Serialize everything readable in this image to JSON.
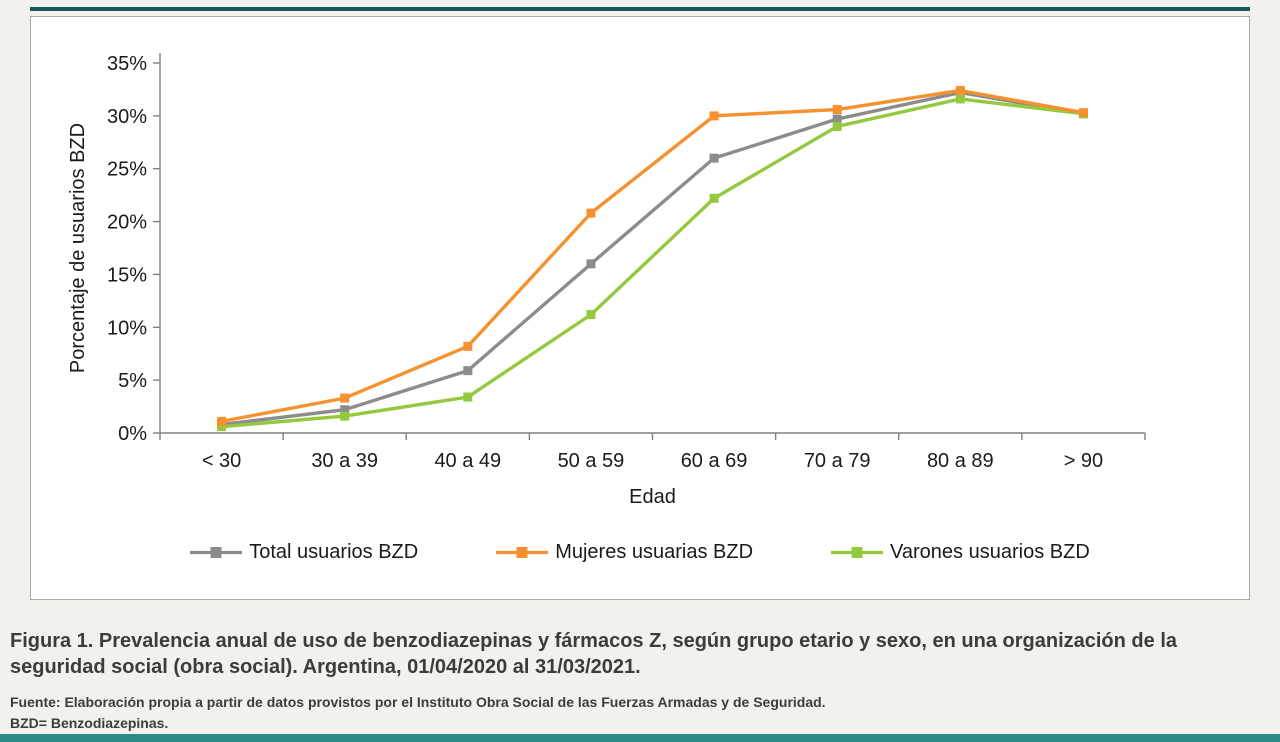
{
  "theme": {
    "page_bg": "#f2f1eb",
    "top_bar_color": "#14595c",
    "bottom_bar_color": "#2c8a86",
    "panel_bg": "#ffffff",
    "panel_border": "#a9a9a9",
    "axis_color": "#808080",
    "tick_text_color": "#1a1a1a"
  },
  "chart_data": {
    "type": "line",
    "title": "",
    "xlabel": "Edad",
    "ylabel": "Porcentaje de usuarios BZD",
    "ylim": [
      0,
      35
    ],
    "ytick_step": 5,
    "ytick_suffix": "%",
    "grid": false,
    "legend_position": "bottom",
    "marker": "square",
    "categories": [
      "< 30",
      "30 a 39",
      "40 a 49",
      "50 a 59",
      "60 a 69",
      "70 a 79",
      "80 a 89",
      "> 90"
    ],
    "series": [
      {
        "name": "Total usuarios BZD",
        "color": "#8c8c8c",
        "values": [
          0.8,
          2.2,
          5.9,
          16.0,
          26.0,
          29.7,
          32.2,
          30.2
        ]
      },
      {
        "name": "Mujeres usuarias BZD",
        "color": "#f5922f",
        "values": [
          1.1,
          3.3,
          8.2,
          20.8,
          30.0,
          30.6,
          32.4,
          30.3
        ]
      },
      {
        "name": "Varones usuarios BZD",
        "color": "#94c83e",
        "values": [
          0.6,
          1.6,
          3.4,
          11.2,
          22.2,
          29.0,
          31.6,
          30.2
        ]
      }
    ],
    "draw_order": [
      0,
      2,
      1
    ]
  },
  "caption": {
    "figure": "Figura 1. Prevalencia anual de uso de benzodiazepinas y fármacos Z, según grupo etario y sexo, en una organización de la seguridad social (obra social). Argentina, 01/04/2020 al 31/03/2021.",
    "source": "Fuente: Elaboración propia a partir de datos provistos por el Instituto Obra Social de las Fuerzas Armadas y de Seguridad.",
    "note": "BZD= Benzodiazepinas."
  }
}
